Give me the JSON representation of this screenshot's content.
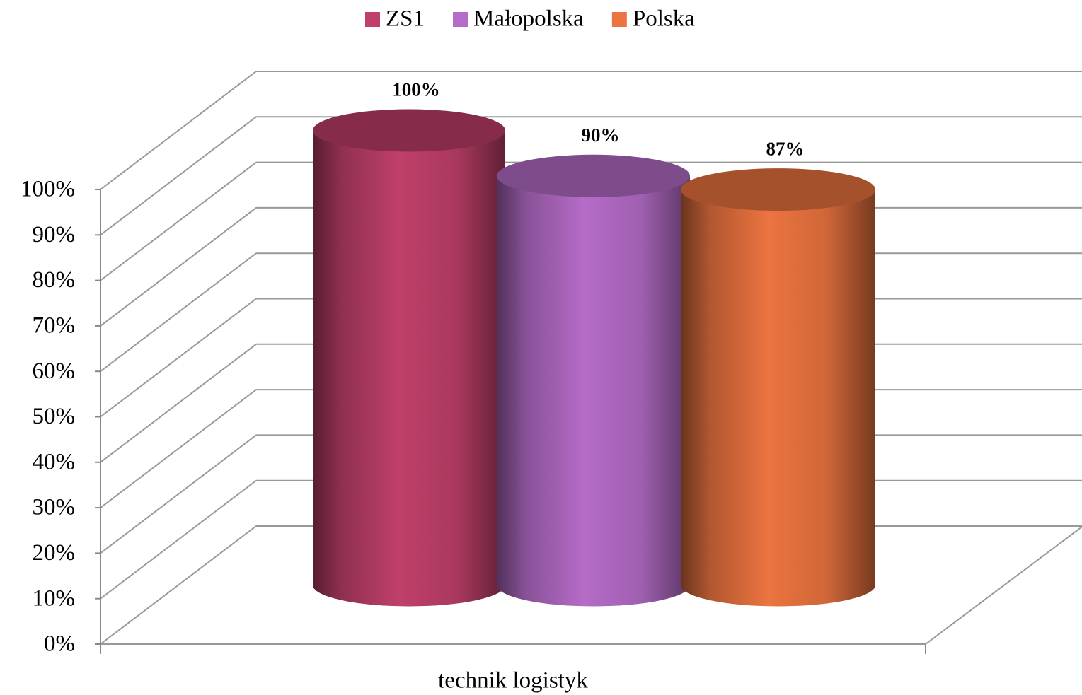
{
  "chart_data": {
    "type": "cylinder",
    "categories": [
      "technik logistyk"
    ],
    "series": [
      {
        "name": "ZS1",
        "color": "#c0406a",
        "values": [
          100
        ],
        "value_labels": [
          "100%"
        ]
      },
      {
        "name": "Małopolska",
        "color": "#b56cc8",
        "values": [
          90
        ],
        "value_labels": [
          "90%"
        ]
      },
      {
        "name": "Polska",
        "color": "#ec7440",
        "values": [
          87
        ],
        "value_labels": [
          "87%"
        ]
      }
    ],
    "ylim": [
      0,
      100
    ],
    "yticks": [
      {
        "value": 0,
        "label": "0%"
      },
      {
        "value": 10,
        "label": "10%"
      },
      {
        "value": 20,
        "label": "20%"
      },
      {
        "value": 30,
        "label": "30%"
      },
      {
        "value": 40,
        "label": "40%"
      },
      {
        "value": 50,
        "label": "50%"
      },
      {
        "value": 60,
        "label": "60%"
      },
      {
        "value": 70,
        "label": "70%"
      },
      {
        "value": 80,
        "label": "80%"
      },
      {
        "value": 90,
        "label": "90%"
      },
      {
        "value": 100,
        "label": "100%"
      }
    ],
    "grid": true,
    "legend": "top"
  }
}
